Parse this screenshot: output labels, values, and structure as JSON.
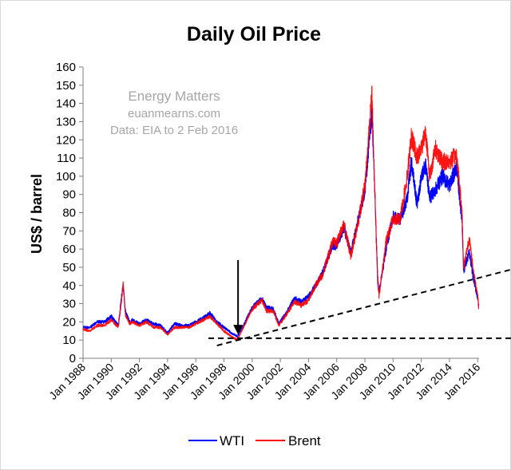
{
  "chart_data": {
    "type": "line",
    "title": "Daily Oil Price",
    "ylabel": "US$ / barrel",
    "xlabel": "",
    "ylim": [
      0,
      160
    ],
    "xlim": [
      1988,
      2016.1
    ],
    "yticks": [
      "0",
      "10",
      "20",
      "30",
      "40",
      "50",
      "60",
      "70",
      "80",
      "90",
      "100",
      "110",
      "120",
      "130",
      "140",
      "150",
      "160"
    ],
    "xticks": [
      "Jan 1988",
      "Jan 1990",
      "Jan 1992",
      "Jan 1994",
      "Jan 1996",
      "Jan 1998",
      "Jan 2000",
      "Jan 2002",
      "Jan 2004",
      "Jan 2006",
      "Jan 2008",
      "Jan 2010",
      "Jan 2012",
      "Jan 2014",
      "Jan 2016"
    ],
    "grid": "none",
    "legend_position": "bottom",
    "watermark": [
      "Energy Matters",
      "euanmearns.com",
      "Data: EIA to 2 Feb 2016"
    ],
    "series": [
      {
        "name": "WTI",
        "color": "#0000ff",
        "x": [
          1988.0,
          1988.5,
          1989.0,
          1989.5,
          1990.0,
          1990.5,
          1990.75,
          1990.85,
          1991.0,
          1991.3,
          1991.5,
          1992.0,
          1992.5,
          1993.0,
          1993.5,
          1994.0,
          1994.5,
          1995.0,
          1995.5,
          1996.0,
          1996.5,
          1997.0,
          1997.5,
          1998.0,
          1998.5,
          1998.95,
          1999.5,
          2000.0,
          2000.7,
          2001.0,
          2001.5,
          2001.9,
          2002.5,
          2003.0,
          2003.5,
          2004.0,
          2004.5,
          2005.0,
          2005.7,
          2006.0,
          2006.5,
          2007.0,
          2007.5,
          2008.0,
          2008.5,
          2008.9,
          2009.0,
          2009.5,
          2010.0,
          2010.5,
          2011.0,
          2011.3,
          2011.7,
          2012.0,
          2012.3,
          2012.6,
          2013.0,
          2013.5,
          2014.0,
          2014.5,
          2014.9,
          2015.0,
          2015.4,
          2015.7,
          2016.0,
          2016.08
        ],
        "values": [
          17,
          17,
          20,
          20,
          23,
          18,
          35,
          40,
          26,
          20,
          21,
          19,
          21,
          19,
          18,
          14,
          19,
          18,
          18,
          20,
          22,
          25,
          20,
          17,
          14,
          12,
          20,
          28,
          33,
          28,
          27,
          19,
          26,
          33,
          31,
          34,
          40,
          47,
          62,
          62,
          72,
          58,
          75,
          92,
          135,
          45,
          36,
          60,
          78,
          76,
          88,
          108,
          84,
          100,
          106,
          88,
          93,
          100,
          95,
          105,
          75,
          48,
          58,
          44,
          33,
          29
        ]
      },
      {
        "name": "Brent",
        "color": "#ff0000",
        "x": [
          1988.0,
          1988.5,
          1989.0,
          1989.5,
          1990.0,
          1990.5,
          1990.75,
          1990.85,
          1991.0,
          1991.3,
          1991.5,
          1992.0,
          1992.5,
          1993.0,
          1993.5,
          1994.0,
          1994.5,
          1995.0,
          1995.5,
          1996.0,
          1996.5,
          1997.0,
          1997.5,
          1998.0,
          1998.5,
          1998.95,
          1999.5,
          2000.0,
          2000.7,
          2001.0,
          2001.5,
          2001.9,
          2002.5,
          2003.0,
          2003.5,
          2004.0,
          2004.5,
          2005.0,
          2005.7,
          2006.0,
          2006.5,
          2007.0,
          2007.5,
          2008.0,
          2008.5,
          2008.9,
          2009.0,
          2009.5,
          2010.0,
          2010.5,
          2011.0,
          2011.3,
          2011.7,
          2012.0,
          2012.3,
          2012.6,
          2013.0,
          2013.5,
          2014.0,
          2014.5,
          2014.9,
          2015.0,
          2015.4,
          2015.7,
          2016.0,
          2016.08
        ],
        "values": [
          16,
          15,
          18,
          18,
          21,
          17,
          33,
          41,
          24,
          19,
          20,
          18,
          20,
          17,
          17,
          13,
          17,
          17,
          17,
          19,
          21,
          23,
          19,
          15,
          12,
          10,
          19,
          27,
          32,
          26,
          26,
          18,
          25,
          31,
          29,
          32,
          40,
          46,
          64,
          63,
          74,
          56,
          74,
          95,
          145,
          42,
          34,
          64,
          77,
          76,
          100,
          122,
          110,
          115,
          125,
          100,
          115,
          108,
          108,
          112,
          80,
          50,
          66,
          48,
          35,
          27
        ]
      }
    ],
    "annotations": [
      {
        "type": "arrow",
        "label": "",
        "x": 1999.0,
        "y_from": 54,
        "y_to": 14
      },
      {
        "type": "dashed-trend",
        "label": "",
        "from": [
          1997.5,
          7
        ],
        "to": [
          2018.5,
          49
        ]
      },
      {
        "type": "dashed-floor",
        "label": "",
        "from": [
          1996.9,
          11
        ],
        "to": [
          2019.7,
          11
        ]
      }
    ]
  }
}
